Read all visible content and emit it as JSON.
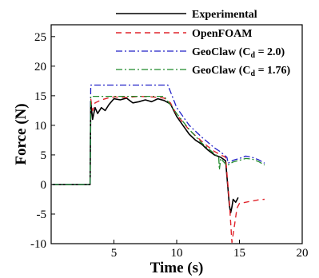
{
  "chart_data": {
    "type": "line",
    "title": "",
    "xlabel": "Time (s)",
    "ylabel": "Force (N)",
    "xlim": [
      0,
      20
    ],
    "ylim": [
      -10,
      27
    ],
    "xticks": [
      5,
      10,
      15,
      20
    ],
    "yticks": [
      -10,
      -5,
      0,
      5,
      10,
      15,
      20,
      25
    ],
    "xtick_labels": [
      "5",
      "10",
      "15",
      "20"
    ],
    "ytick_labels": [
      "-10",
      "-5",
      "0",
      "5",
      "10",
      "15",
      "20",
      "25"
    ],
    "grid": false,
    "legend_position": "top-right",
    "series": [
      {
        "name": "Experimental",
        "color": "#000000",
        "dash": "",
        "width": 1.6,
        "x": [
          0.1,
          3.1,
          3.15,
          3.3,
          3.5,
          3.7,
          4.0,
          4.3,
          4.6,
          5.0,
          5.5,
          6.0,
          6.5,
          7.0,
          7.5,
          8.0,
          8.5,
          9.0,
          9.5,
          10.0,
          10.5,
          11.0,
          11.5,
          12.0,
          12.5,
          13.0,
          13.5,
          13.9,
          14.2,
          14.3,
          14.4,
          14.5,
          14.7,
          14.9
        ],
        "y": [
          0,
          0,
          14.0,
          11.0,
          13.0,
          12.0,
          13.0,
          12.5,
          13.5,
          14.5,
          14.3,
          14.6,
          13.8,
          14.0,
          14.3,
          14.0,
          14.5,
          14.2,
          13.6,
          11.5,
          10.0,
          8.5,
          7.5,
          6.8,
          5.8,
          5.0,
          4.6,
          4.0,
          -3.5,
          -4.8,
          -3.8,
          -2.5,
          -3.0,
          -2.2
        ]
      },
      {
        "name": "OpenFOAM",
        "color": "#e0242b",
        "dash": "7,5",
        "width": 1.4,
        "x": [
          3.15,
          3.3,
          3.5,
          4.0,
          4.5,
          5.0,
          6.0,
          7.0,
          8.0,
          9.0,
          9.5,
          10.0,
          11.0,
          12.0,
          12.5,
          13.0,
          13.5,
          13.9,
          14.2,
          14.4,
          14.6,
          14.8,
          15.0,
          15.5,
          16.0,
          16.5,
          17.0
        ],
        "y": [
          14.5,
          12.5,
          13.8,
          14.3,
          14.6,
          14.8,
          14.7,
          14.9,
          14.8,
          14.6,
          13.8,
          11.8,
          9.2,
          7.3,
          6.4,
          5.6,
          5.0,
          4.6,
          -3.0,
          -9.8,
          -7.0,
          -4.0,
          -3.2,
          -3.0,
          -2.8,
          -2.6,
          -2.5
        ]
      },
      {
        "name": "GeoClaw (Cd = 2.0)",
        "color": "#2020c8",
        "dash": "8,3,2,3",
        "width": 1.3,
        "x": [
          0.1,
          3.1,
          3.15,
          3.5,
          5.0,
          7.0,
          9.3,
          10.0,
          11.0,
          12.0,
          13.0,
          13.5,
          14.0,
          14.1,
          14.5,
          15.0,
          15.5,
          16.0,
          16.5,
          17.0
        ],
        "y": [
          0,
          0,
          16.8,
          16.8,
          16.8,
          16.8,
          16.8,
          13.0,
          10.0,
          8.0,
          6.2,
          5.5,
          4.6,
          3.6,
          4.1,
          4.4,
          4.8,
          4.6,
          4.2,
          3.6
        ]
      },
      {
        "name": "GeoClaw (Cd = 1.76)",
        "color": "#1f8a2a",
        "dash": "8,3,2,3",
        "width": 1.3,
        "x": [
          0.1,
          3.1,
          3.15,
          3.5,
          5.0,
          7.0,
          9.0,
          10.0,
          11.0,
          12.0,
          13.0,
          13.35,
          13.4,
          13.5,
          14.0,
          14.5,
          15.0,
          15.5,
          16.0,
          16.5,
          17.0
        ],
        "y": [
          0,
          0,
          14.9,
          14.9,
          14.9,
          14.9,
          14.9,
          12.0,
          9.3,
          7.0,
          5.2,
          4.6,
          2.5,
          4.4,
          3.2,
          3.8,
          4.1,
          4.4,
          4.3,
          3.9,
          3.3
        ]
      }
    ],
    "legend": [
      {
        "main": "Experimental",
        "sub": "",
        "tail": ""
      },
      {
        "main": "OpenFOAM",
        "sub": "",
        "tail": ""
      },
      {
        "main": "GeoClaw (C",
        "sub": "d",
        "tail": " = 2.0)"
      },
      {
        "main": "GeoClaw (C",
        "sub": "d",
        "tail": " = 1.76)"
      }
    ]
  }
}
